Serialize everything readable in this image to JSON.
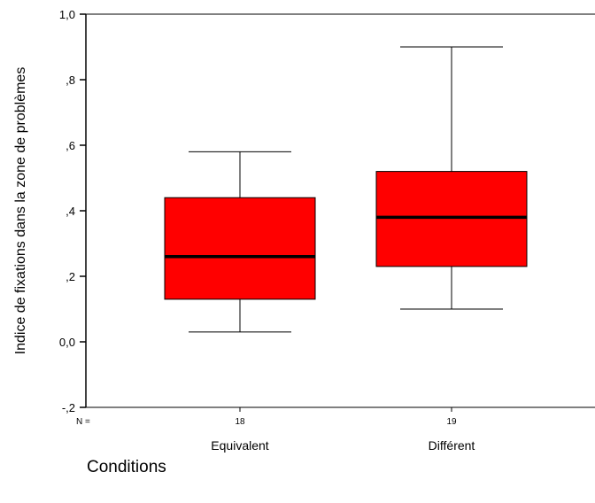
{
  "chart_data": {
    "type": "box",
    "ylabel": "Indice de fixations dans la zone de problèmes",
    "xlabel": "Conditions",
    "n_prefix": "N =",
    "ylim": [
      -0.2,
      1.0
    ],
    "yticks": [
      {
        "value": 1.0,
        "label": "1,0"
      },
      {
        "value": 0.8,
        "label": ",8"
      },
      {
        "value": 0.6,
        "label": ",6"
      },
      {
        "value": 0.4,
        "label": ",4"
      },
      {
        "value": 0.2,
        "label": ",2"
      },
      {
        "value": 0.0,
        "label": "0,0"
      },
      {
        "value": -0.2,
        "label": "-,2"
      }
    ],
    "box_color": "#ff0000",
    "categories": [
      "Equivalent",
      "Différent"
    ],
    "n": [
      "18",
      "19"
    ],
    "boxes": [
      {
        "category": "Equivalent",
        "n": "18",
        "min": 0.03,
        "q1": 0.13,
        "median": 0.26,
        "q3": 0.44,
        "max": 0.58
      },
      {
        "category": "Différent",
        "n": "19",
        "min": 0.1,
        "q1": 0.23,
        "median": 0.38,
        "q3": 0.52,
        "max": 0.9
      }
    ]
  }
}
